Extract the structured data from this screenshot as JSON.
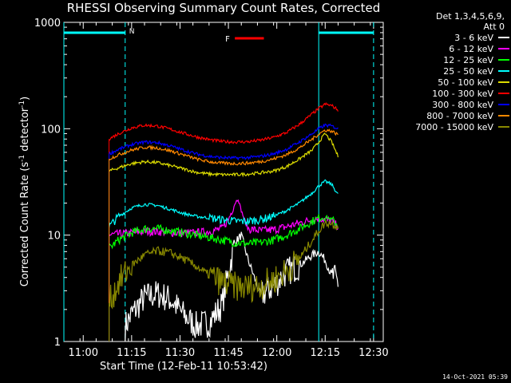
{
  "chart_data": {
    "type": "line",
    "title": "RHESSI Observing Summary Count Rates, Corrected",
    "xlabel": "Start Time (12-Feb-11 10:53:42)",
    "ylabel_main": "Corrected Count Rate (s",
    "ylabel_sup1": "-1",
    "ylabel_mid": " detector",
    "ylabel_sup2": "-1",
    "ylabel_end": ")",
    "y_scale": "log",
    "ylim": [
      1,
      1000
    ],
    "xlim_minutes": [
      -5.7,
      35.5
    ],
    "x_ticks": [
      {
        "minute": -1,
        "label": "11:00"
      },
      {
        "minute": 14,
        "label": "11:15"
      },
      {
        "minute": 29,
        "label": "11:30"
      },
      {
        "minute": 44,
        "label": "11:45"
      },
      {
        "minute": 59,
        "label": "12:00"
      },
      {
        "minute": 74,
        "label": "12:15"
      },
      {
        "minute": 89,
        "label": "12:30"
      }
    ],
    "y_ticks": [
      {
        "value": 1,
        "label": "1"
      },
      {
        "value": 10,
        "label": "10"
      },
      {
        "value": 100,
        "label": "100"
      },
      {
        "value": 1000,
        "label": "1000"
      }
    ],
    "x_range_minutes": [
      -7,
      92
    ],
    "legend_header": [
      "Det 1,3,4,5,6,9,",
      "Att 0"
    ],
    "legend_position": "right",
    "series": [
      {
        "name": "3 - 6 keV",
        "color": "#ffffff",
        "x": [
          12,
          14,
          18,
          22,
          26,
          30,
          34,
          38,
          42,
          44,
          46,
          48,
          50,
          54,
          58,
          62,
          66,
          70,
          72,
          74,
          76,
          78
        ],
        "y": [
          1.4,
          1.8,
          2.6,
          2.8,
          2.5,
          1.8,
          1.4,
          1.5,
          2.2,
          4.5,
          8.5,
          10,
          6,
          2.7,
          3.3,
          4.5,
          5.2,
          6.5,
          7.0,
          5.8,
          4.2,
          3.6
        ]
      },
      {
        "name": "6 - 12 keV",
        "color": "#ff00ff",
        "x": [
          7,
          10,
          14,
          18,
          22,
          26,
          30,
          34,
          38,
          42,
          44,
          46,
          47,
          48,
          50,
          54,
          58,
          62,
          66,
          70,
          72,
          74,
          76,
          78
        ],
        "y": [
          10,
          10.2,
          10.5,
          10.8,
          10.8,
          10.6,
          10.4,
          10.5,
          10.8,
          11.5,
          14,
          20,
          22,
          17,
          11.5,
          11,
          11.2,
          12,
          13,
          14,
          14.5,
          14,
          13.5,
          12
        ]
      },
      {
        "name": "12 - 25 keV",
        "color": "#00ff00",
        "x": [
          7,
          10,
          14,
          18,
          22,
          26,
          30,
          34,
          38,
          42,
          46,
          50,
          54,
          58,
          62,
          66,
          70,
          72,
          74,
          76,
          78
        ],
        "y": [
          7.5,
          9,
          10.5,
          11.5,
          11.5,
          11,
          10.5,
          10,
          9.5,
          9,
          8.5,
          8.3,
          8.5,
          9,
          10,
          11.5,
          13.5,
          14.5,
          15,
          14,
          12.5
        ]
      },
      {
        "name": "25 - 50 keV",
        "color": "#00ffff",
        "x": [
          7,
          10,
          14,
          18,
          22,
          26,
          30,
          34,
          38,
          42,
          46,
          50,
          54,
          58,
          62,
          66,
          70,
          72,
          74,
          76,
          78
        ],
        "y": [
          12,
          15,
          18,
          19.5,
          19,
          17.5,
          16,
          15,
          14.5,
          14,
          13.5,
          13.5,
          14,
          15,
          17,
          20,
          25,
          29,
          32,
          30,
          24
        ]
      },
      {
        "name": "50 - 100 keV",
        "color": "#dddd00",
        "x": [
          7,
          10,
          14,
          18,
          22,
          26,
          30,
          34,
          38,
          42,
          46,
          50,
          54,
          58,
          62,
          66,
          70,
          72,
          74,
          76,
          78
        ],
        "y": [
          40,
          43,
          47,
          49,
          48,
          45,
          42,
          39,
          37.5,
          37,
          37,
          37.5,
          38.5,
          40,
          44,
          52,
          63,
          75,
          90,
          75,
          55
        ]
      },
      {
        "name": "100 - 300 keV",
        "color": "#ff0000",
        "x": [
          7,
          10,
          14,
          18,
          22,
          26,
          30,
          34,
          38,
          42,
          46,
          50,
          54,
          58,
          62,
          66,
          70,
          72,
          74,
          76,
          78
        ],
        "y": [
          80,
          90,
          102,
          108,
          106,
          99,
          91,
          84,
          79,
          76,
          75,
          75.5,
          78,
          83,
          92,
          110,
          138,
          155,
          170,
          165,
          150
        ]
      },
      {
        "name": "300 - 800 keV",
        "color": "#0000ff",
        "x": [
          7,
          10,
          14,
          18,
          22,
          26,
          30,
          34,
          38,
          42,
          46,
          50,
          54,
          58,
          62,
          66,
          70,
          72,
          74,
          76,
          78
        ],
        "y": [
          58,
          64,
          71,
          75,
          74,
          69,
          63,
          58,
          55,
          53.5,
          53,
          53.5,
          55,
          58,
          64,
          75,
          90,
          100,
          108,
          106,
          100
        ]
      },
      {
        "name": "800 - 7000 keV",
        "color": "#ff8800",
        "x": [
          7,
          10,
          14,
          18,
          22,
          26,
          30,
          34,
          38,
          42,
          46,
          50,
          54,
          58,
          62,
          66,
          70,
          72,
          74,
          76,
          78
        ],
        "y": [
          52,
          57,
          63,
          67,
          66,
          62,
          57,
          52,
          49,
          47.5,
          47,
          47.5,
          49,
          52,
          57,
          66,
          80,
          89,
          97,
          95,
          88
        ]
      },
      {
        "name": "7000 - 15000 keV",
        "color": "#888800",
        "x": [
          7,
          10,
          14,
          18,
          22,
          26,
          30,
          34,
          38,
          42,
          46,
          50,
          54,
          58,
          62,
          66,
          70,
          72,
          74,
          76,
          78
        ],
        "y": [
          2.3,
          3.6,
          5.2,
          6.5,
          7.1,
          6.8,
          6.0,
          5.1,
          4.2,
          3.6,
          3.3,
          3.2,
          3.4,
          3.8,
          4.6,
          6.0,
          9,
          11,
          13,
          13,
          12
        ]
      }
    ],
    "night_markers": [
      {
        "label": "N",
        "x_start": -7,
        "x_end": 12,
        "style": "cyan-bar"
      },
      {
        "label": "",
        "x_start": 72,
        "x_end": 89,
        "style": "cyan-bar"
      }
    ],
    "flare_marker": {
      "label": "F",
      "x_start": 46,
      "x_end": 55,
      "color": "#ff0000"
    }
  },
  "timestamp": "14-Oct-2021 05:39"
}
